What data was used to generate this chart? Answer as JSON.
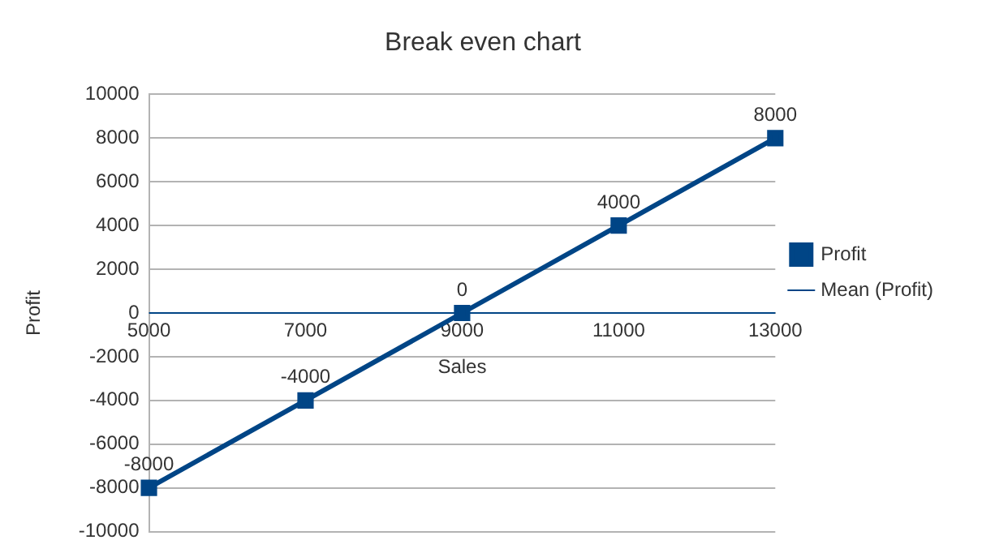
{
  "chart_data": {
    "type": "line",
    "title": "Break even chart",
    "xlabel": "Sales",
    "ylabel": "Profit",
    "categories": [
      "5000",
      "7000",
      "9000",
      "11000",
      "13000"
    ],
    "series": [
      {
        "name": "Profit",
        "color": "#004586",
        "values": [
          -8000,
          -4000,
          0,
          4000,
          8000
        ]
      }
    ],
    "ref_lines": [
      {
        "axis": "y",
        "value": 0,
        "label": "Mean (Profit)",
        "color": "#004586"
      }
    ],
    "ylim": [
      -10000,
      10000
    ],
    "yticks": [
      -10000,
      -8000,
      -6000,
      -4000,
      -2000,
      0,
      2000,
      4000,
      6000,
      8000,
      10000
    ],
    "grid": "y",
    "legend": "right",
    "marker": "square",
    "line_style": "solid",
    "data_labels": true
  }
}
